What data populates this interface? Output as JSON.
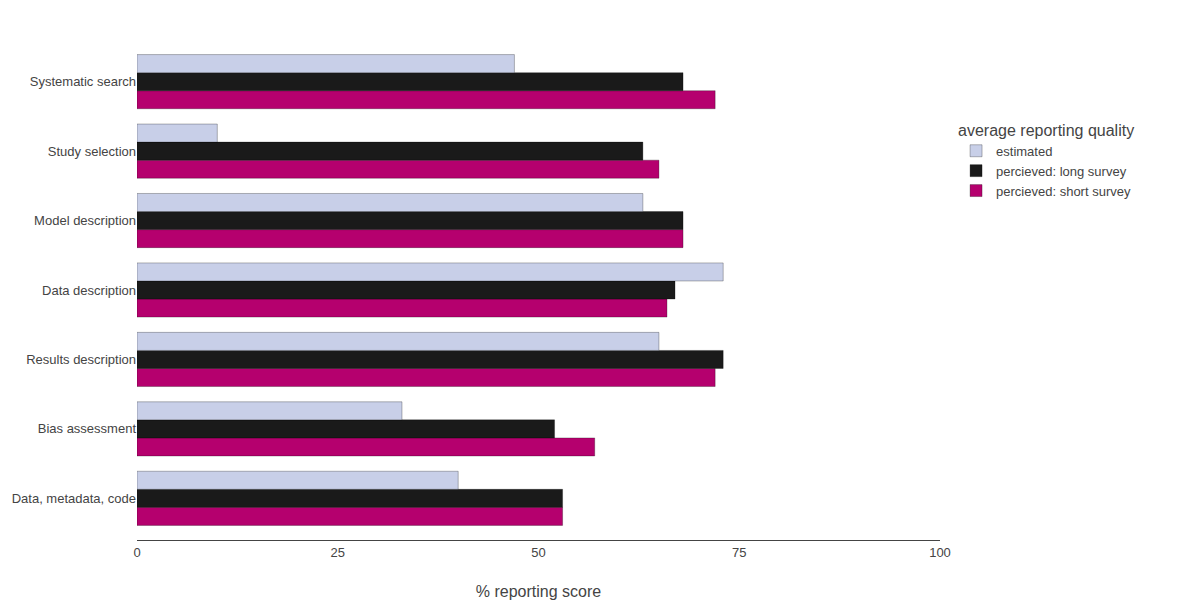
{
  "chart_data": {
    "type": "bar",
    "orientation": "horizontal",
    "categories": [
      "Data, metadata, code",
      "Bias assessment",
      "Results description",
      "Data description",
      "Model description",
      "Study selection",
      "Systematic search"
    ],
    "series": [
      {
        "name": "estimated",
        "color": "#c8cfe8",
        "values": [
          40,
          33,
          65,
          73,
          63,
          10,
          47
        ]
      },
      {
        "name": "percieved: long survey",
        "color": "#1a1a1a",
        "values": [
          53,
          52,
          73,
          67,
          68,
          63,
          68
        ]
      },
      {
        "name": "percieved: short survey",
        "color": "#b5006e",
        "values": [
          53,
          57,
          72,
          66,
          68,
          65,
          72
        ]
      }
    ],
    "xlabel": "% reporting score",
    "xlim": [
      0,
      100
    ],
    "xticks": [
      0,
      25,
      50,
      75,
      100
    ],
    "grid": false,
    "legend": "right",
    "legend_title": "average reporting quality"
  }
}
